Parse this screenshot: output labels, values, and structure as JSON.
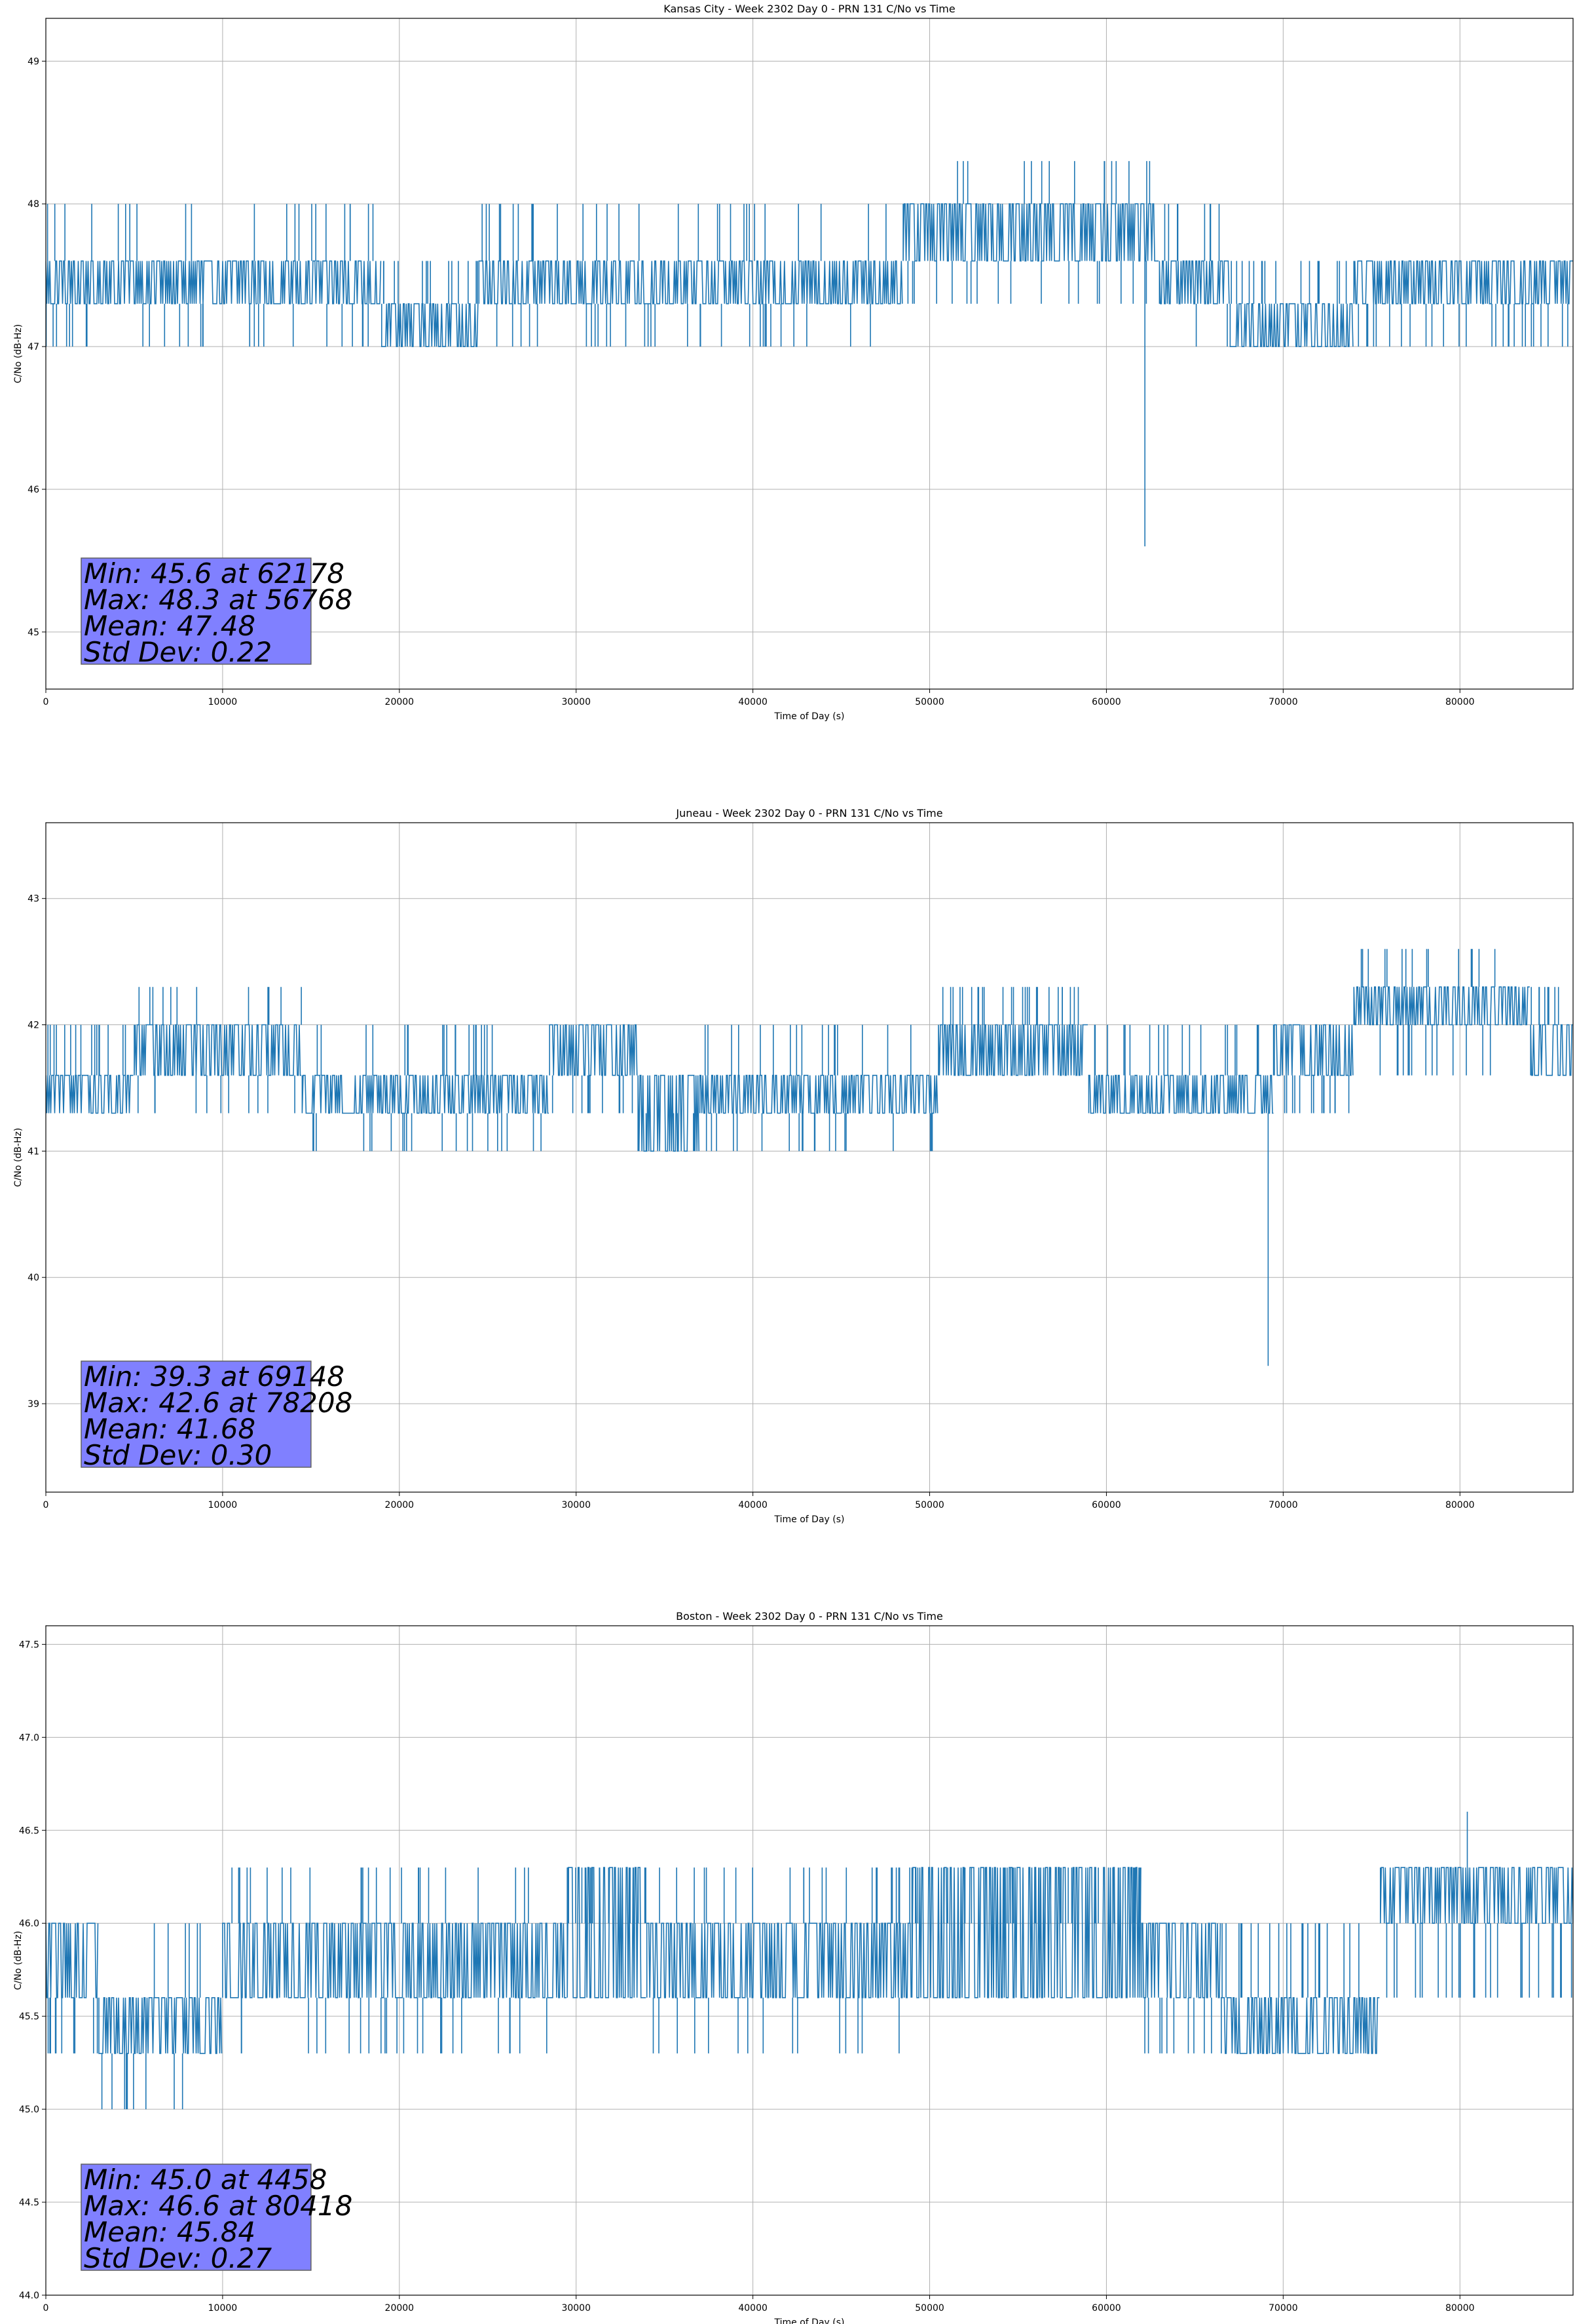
{
  "colors": {
    "series": "#1f77b4",
    "stats_box_fill": "#8080ff",
    "stats_box_edge": "#606060",
    "grid": "#b0b0b0",
    "axes": "#000000",
    "background": "#ffffff"
  },
  "chart_data": [
    {
      "type": "line",
      "title": "Kansas City - Week 2302 Day 0 - PRN 131 C/No vs Time",
      "xlabel": "Time of Day (s)",
      "ylabel": "C/No (dB-Hz)",
      "xlim": [
        0,
        86400
      ],
      "ylim": [
        44.6,
        49.3
      ],
      "xticks": [
        0,
        10000,
        20000,
        30000,
        40000,
        50000,
        60000,
        70000,
        80000
      ],
      "yticks": [
        45,
        46,
        47,
        48,
        49
      ],
      "ytick_labels": [
        "45",
        "46",
        "47",
        "48",
        "49"
      ],
      "grid": true,
      "stats_box": [
        "Min: 45.6 at 62178",
        "Max: 48.3 at 56768",
        "Mean: 47.48",
        "Std Dev: 0.22"
      ],
      "baseline_segments": [
        {
          "x0": 0,
          "x1": 12000,
          "base": [
            47.3,
            47.6
          ],
          "excursions": [
            47.0,
            48.0
          ]
        },
        {
          "x0": 12000,
          "x1": 19000,
          "base": [
            47.3,
            47.6
          ],
          "excursions": [
            47.0,
            48.0
          ]
        },
        {
          "x0": 19000,
          "x1": 24500,
          "base": [
            47.0,
            47.3
          ],
          "excursions": [
            47.6
          ]
        },
        {
          "x0": 24500,
          "x1": 48500,
          "base": [
            47.3,
            47.6
          ],
          "excursions": [
            47.0,
            48.0
          ]
        },
        {
          "x0": 48500,
          "x1": 63000,
          "base": [
            47.6,
            48.0
          ],
          "excursions": [
            47.3,
            48.3
          ]
        },
        {
          "x0": 63000,
          "x1": 67000,
          "base": [
            47.3,
            47.6
          ],
          "excursions": [
            47.0,
            48.0
          ]
        },
        {
          "x0": 67000,
          "x1": 74000,
          "base": [
            47.0,
            47.3
          ],
          "excursions": [
            47.6
          ]
        },
        {
          "x0": 74000,
          "x1": 86400,
          "base": [
            47.3,
            47.6
          ],
          "excursions": [
            47.0
          ]
        }
      ],
      "min_point": {
        "x": 62178,
        "y": 45.6
      },
      "max_point": {
        "x": 56768,
        "y": 48.3
      }
    },
    {
      "type": "line",
      "title": "Juneau - Week 2302 Day 0 - PRN 131 C/No vs Time",
      "xlabel": "Time of Day (s)",
      "ylabel": "C/No (dB-Hz)",
      "xlim": [
        0,
        86400
      ],
      "ylim": [
        38.3,
        43.6
      ],
      "xticks": [
        0,
        10000,
        20000,
        30000,
        40000,
        50000,
        60000,
        70000,
        80000
      ],
      "yticks": [
        39,
        40,
        41,
        42,
        43
      ],
      "ytick_labels": [
        "39",
        "40",
        "41",
        "42",
        "43"
      ],
      "grid": true,
      "stats_box": [
        "Min: 39.3 at 69148",
        "Max: 42.6 at 78208",
        "Mean: 41.68",
        "Std Dev: 0.30"
      ],
      "baseline_segments": [
        {
          "x0": 0,
          "x1": 5000,
          "base": [
            41.3,
            41.6
          ],
          "excursions": [
            42.0
          ]
        },
        {
          "x0": 5000,
          "x1": 14500,
          "base": [
            41.6,
            42.0
          ],
          "excursions": [
            41.3,
            42.3
          ]
        },
        {
          "x0": 14500,
          "x1": 28500,
          "base": [
            41.3,
            41.6
          ],
          "excursions": [
            41.0,
            42.0
          ]
        },
        {
          "x0": 28500,
          "x1": 33500,
          "base": [
            41.6,
            42.0
          ],
          "excursions": [
            41.3
          ]
        },
        {
          "x0": 33500,
          "x1": 37000,
          "base": [
            41.0,
            41.6
          ],
          "excursions": [
            41.3
          ]
        },
        {
          "x0": 37000,
          "x1": 50500,
          "base": [
            41.3,
            41.6
          ],
          "excursions": [
            41.0,
            42.0
          ]
        },
        {
          "x0": 50500,
          "x1": 59000,
          "base": [
            41.6,
            42.0
          ],
          "excursions": [
            42.3
          ]
        },
        {
          "x0": 59000,
          "x1": 69500,
          "base": [
            41.3,
            41.6
          ],
          "excursions": [
            42.0
          ]
        },
        {
          "x0": 69500,
          "x1": 74000,
          "base": [
            41.6,
            42.0
          ],
          "excursions": [
            41.3
          ]
        },
        {
          "x0": 74000,
          "x1": 84000,
          "base": [
            42.0,
            42.3
          ],
          "excursions": [
            41.6,
            42.6
          ]
        },
        {
          "x0": 84000,
          "x1": 86400,
          "base": [
            41.6,
            42.0
          ],
          "excursions": [
            42.3
          ]
        }
      ],
      "min_point": {
        "x": 69148,
        "y": 39.3
      },
      "max_point": {
        "x": 78208,
        "y": 42.6
      }
    },
    {
      "type": "line",
      "title": "Boston - Week 2302 Day 0 - PRN 131 C/No vs Time",
      "xlabel": "Time of Day (s)",
      "ylabel": "C/No (dB-Hz)",
      "xlim": [
        0,
        86400
      ],
      "ylim": [
        44.0,
        47.6
      ],
      "xticks": [
        0,
        10000,
        20000,
        30000,
        40000,
        50000,
        60000,
        70000,
        80000
      ],
      "yticks": [
        44.0,
        44.5,
        45.0,
        45.5,
        46.0,
        46.5,
        47.0,
        47.5
      ],
      "ytick_labels": [
        "44.0",
        "44.5",
        "45.0",
        "45.5",
        "46.0",
        "46.5",
        "47.0",
        "47.5"
      ],
      "grid": true,
      "stats_box": [
        "Min: 45.0 at 4458",
        "Max: 46.6 at 80418",
        "Mean: 45.84",
        "Std Dev: 0.27"
      ],
      "baseline_segments": [
        {
          "x0": 0,
          "x1": 3000,
          "base": [
            45.6,
            46.0
          ],
          "excursions": [
            45.3
          ]
        },
        {
          "x0": 3000,
          "x1": 10000,
          "base": [
            45.3,
            45.6
          ],
          "excursions": [
            45.0,
            46.0
          ]
        },
        {
          "x0": 10000,
          "x1": 29500,
          "base": [
            45.6,
            46.0
          ],
          "excursions": [
            45.3,
            46.3
          ]
        },
        {
          "x0": 29500,
          "x1": 34000,
          "base": [
            45.6,
            46.3
          ],
          "excursions": [
            46.0
          ]
        },
        {
          "x0": 34000,
          "x1": 49000,
          "base": [
            45.6,
            46.0
          ],
          "excursions": [
            45.3,
            46.3
          ]
        },
        {
          "x0": 49000,
          "x1": 62000,
          "base": [
            45.6,
            46.3
          ],
          "excursions": [
            46.0
          ]
        },
        {
          "x0": 62000,
          "x1": 66500,
          "base": [
            45.6,
            46.0
          ],
          "excursions": [
            45.3
          ]
        },
        {
          "x0": 66500,
          "x1": 75500,
          "base": [
            45.3,
            45.6
          ],
          "excursions": [
            46.0
          ]
        },
        {
          "x0": 75500,
          "x1": 86400,
          "base": [
            46.0,
            46.3
          ],
          "excursions": [
            45.6
          ]
        }
      ],
      "min_point": {
        "x": 4458,
        "y": 45.0
      },
      "max_point": {
        "x": 80418,
        "y": 46.6
      }
    }
  ]
}
